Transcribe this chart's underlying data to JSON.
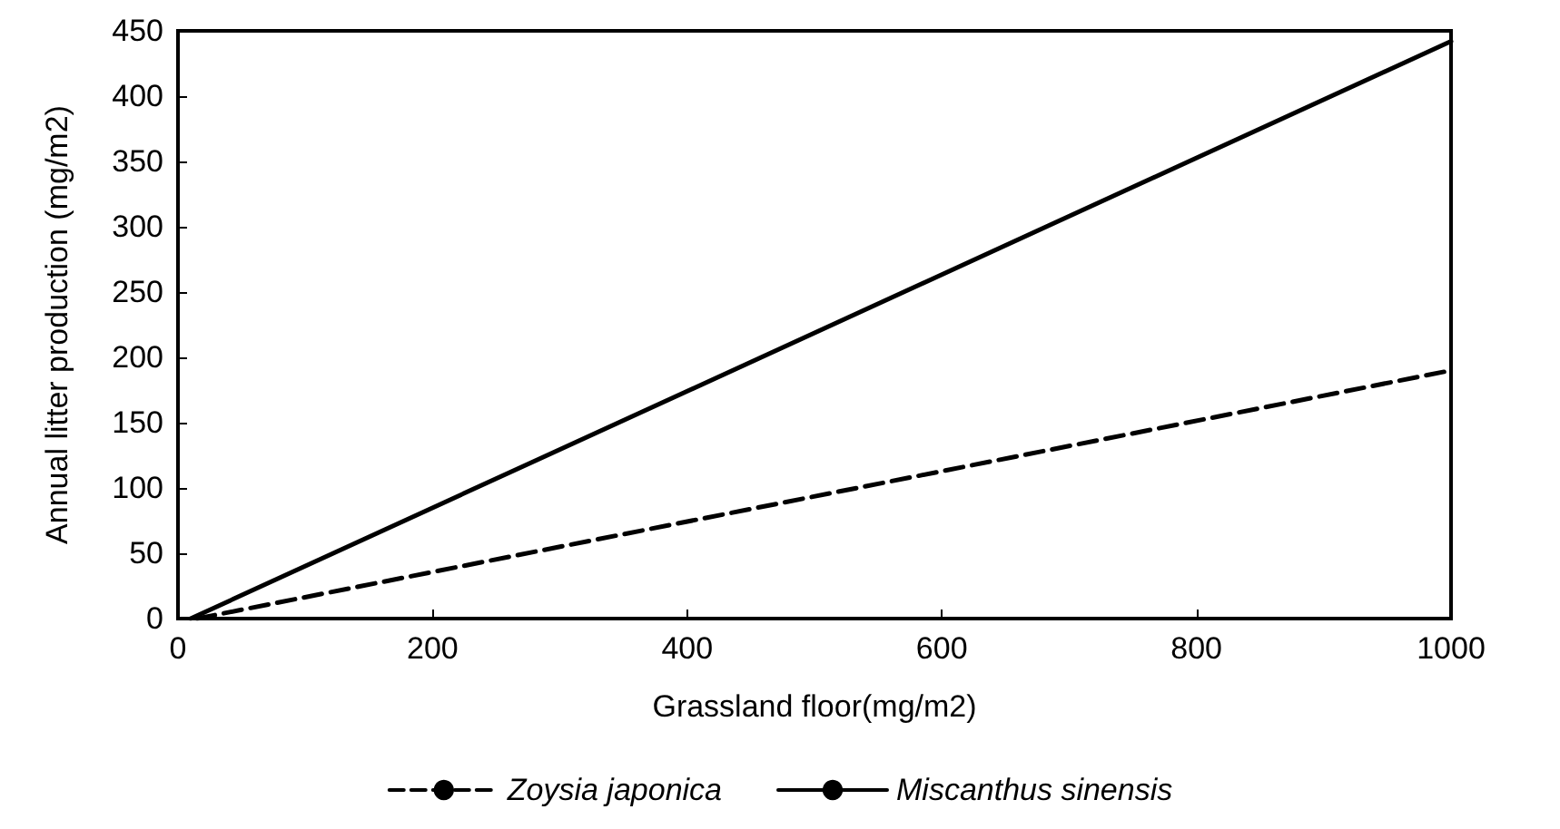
{
  "chart_data": {
    "type": "line",
    "xlabel": "Grassland floor(mg/m2)",
    "ylabel": "Annual litter production (mg/m2)",
    "xlim": [
      0,
      1000
    ],
    "xticks": [
      0,
      200,
      400,
      600,
      800,
      1000
    ],
    "ylim": [
      0,
      450
    ],
    "yticks": [
      0,
      50,
      100,
      150,
      200,
      250,
      300,
      350,
      400,
      450
    ],
    "grid": false,
    "legend": "bottom",
    "marker": "none",
    "series": [
      {
        "name": "Zoysia japonica",
        "color": "#000000",
        "line_style": "dashed",
        "x": [
          15,
          1000
        ],
        "values": [
          0,
          190
        ]
      },
      {
        "name": "Miscanthus sinensis",
        "color": "#000000",
        "line_style": "solid",
        "x": [
          10,
          1000
        ],
        "values": [
          0,
          442
        ]
      }
    ]
  }
}
